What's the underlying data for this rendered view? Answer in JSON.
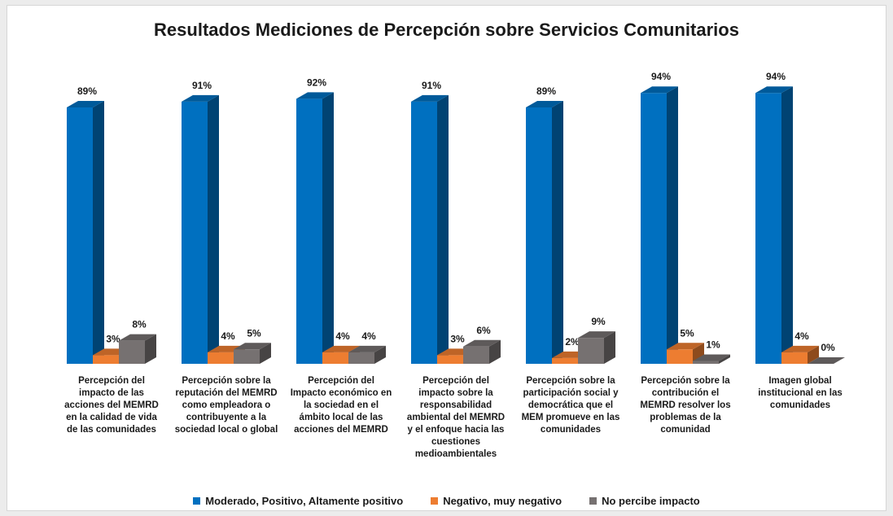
{
  "chart_data": {
    "type": "bar3d",
    "title": "Resultados Mediciones de Percepción sobre Servicios Comunitarios",
    "categories": [
      "Percepción del impacto de las acciones del MEMRD en la calidad de vida de las comunidades",
      "Percepción sobre la reputación del MEMRD como empleadora o contribuyente a la sociedad local o global",
      "Percepción del Impacto económico en la sociedad en el ámbito local de las acciones del MEMRD",
      "Percepción del impacto sobre la responsabilidad ambiental del MEMRD y el enfoque hacia las cuestiones medioambientales",
      "Percepción sobre la participación social y democrática que el MEM promueve en las comunidades",
      "Percepción sobre la contribución el MEMRD resolver los problemas de la comunidad",
      "Imagen global institucional en las comunidades"
    ],
    "series": [
      {
        "name": "Moderado, Positivo, Altamente positivo",
        "color": "#0070c0",
        "values": [
          89,
          91,
          92,
          91,
          89,
          94,
          94
        ],
        "value_labels": [
          "89%",
          "91%",
          "92%",
          "91%",
          "89%",
          "94%",
          "94%"
        ]
      },
      {
        "name": "Negativo, muy negativo",
        "color": "#ed7d31",
        "values": [
          3,
          4,
          4,
          3,
          2,
          5,
          4
        ],
        "value_labels": [
          "3%",
          "4%",
          "4%",
          "3%",
          "2%",
          "5%",
          "4%"
        ]
      },
      {
        "name": "No percibe impacto",
        "color": "#767171",
        "values": [
          8,
          5,
          4,
          6,
          9,
          1,
          0
        ],
        "value_labels": [
          "8%",
          "5%",
          "4%",
          "6%",
          "9%",
          "1%",
          "0%"
        ]
      }
    ],
    "legend": "bottom"
  }
}
